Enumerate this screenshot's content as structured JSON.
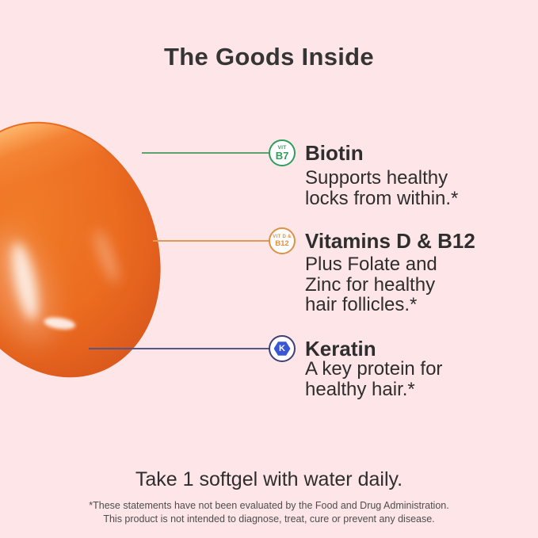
{
  "page": {
    "title": "The Goods Inside",
    "background_color": "#fde5e8",
    "text_color": "#2e2e2e"
  },
  "softgel": {
    "description": "orange softgel capsule",
    "color_main": "#ec6c20",
    "color_light": "#f9a24f",
    "color_dark": "#c64d1a"
  },
  "callouts": [
    {
      "badge_line1": "VIT",
      "badge_line2": "B7",
      "color": "#2f9e5c",
      "line_color": "#5aa36e",
      "title": "Biotin",
      "line1": "Supports healthy",
      "line2": "locks from within.*"
    },
    {
      "badge_line1": "VIT D &",
      "badge_line2": "B12",
      "color": "#dd9147",
      "line_color": "#e09a55",
      "title": "Vitamins D & B12",
      "line1": "Plus Folate and",
      "line2": "Zinc for healthy",
      "line3": "hair follicles.*"
    },
    {
      "badge_letter": "K",
      "color": "#3e4077",
      "hex_color": "#3a56d4",
      "line_color": "#54578b",
      "title": "Keratin",
      "line1": "A key protein for",
      "line2": "healthy hair.*"
    }
  ],
  "footer": {
    "dosage": "Take 1 softgel with water daily.",
    "disclaimer_line1": "*These statements have not been evaluated by the Food and Drug Administration.",
    "disclaimer_line2": "This product is not intended to diagnose, treat, cure or prevent any disease."
  }
}
